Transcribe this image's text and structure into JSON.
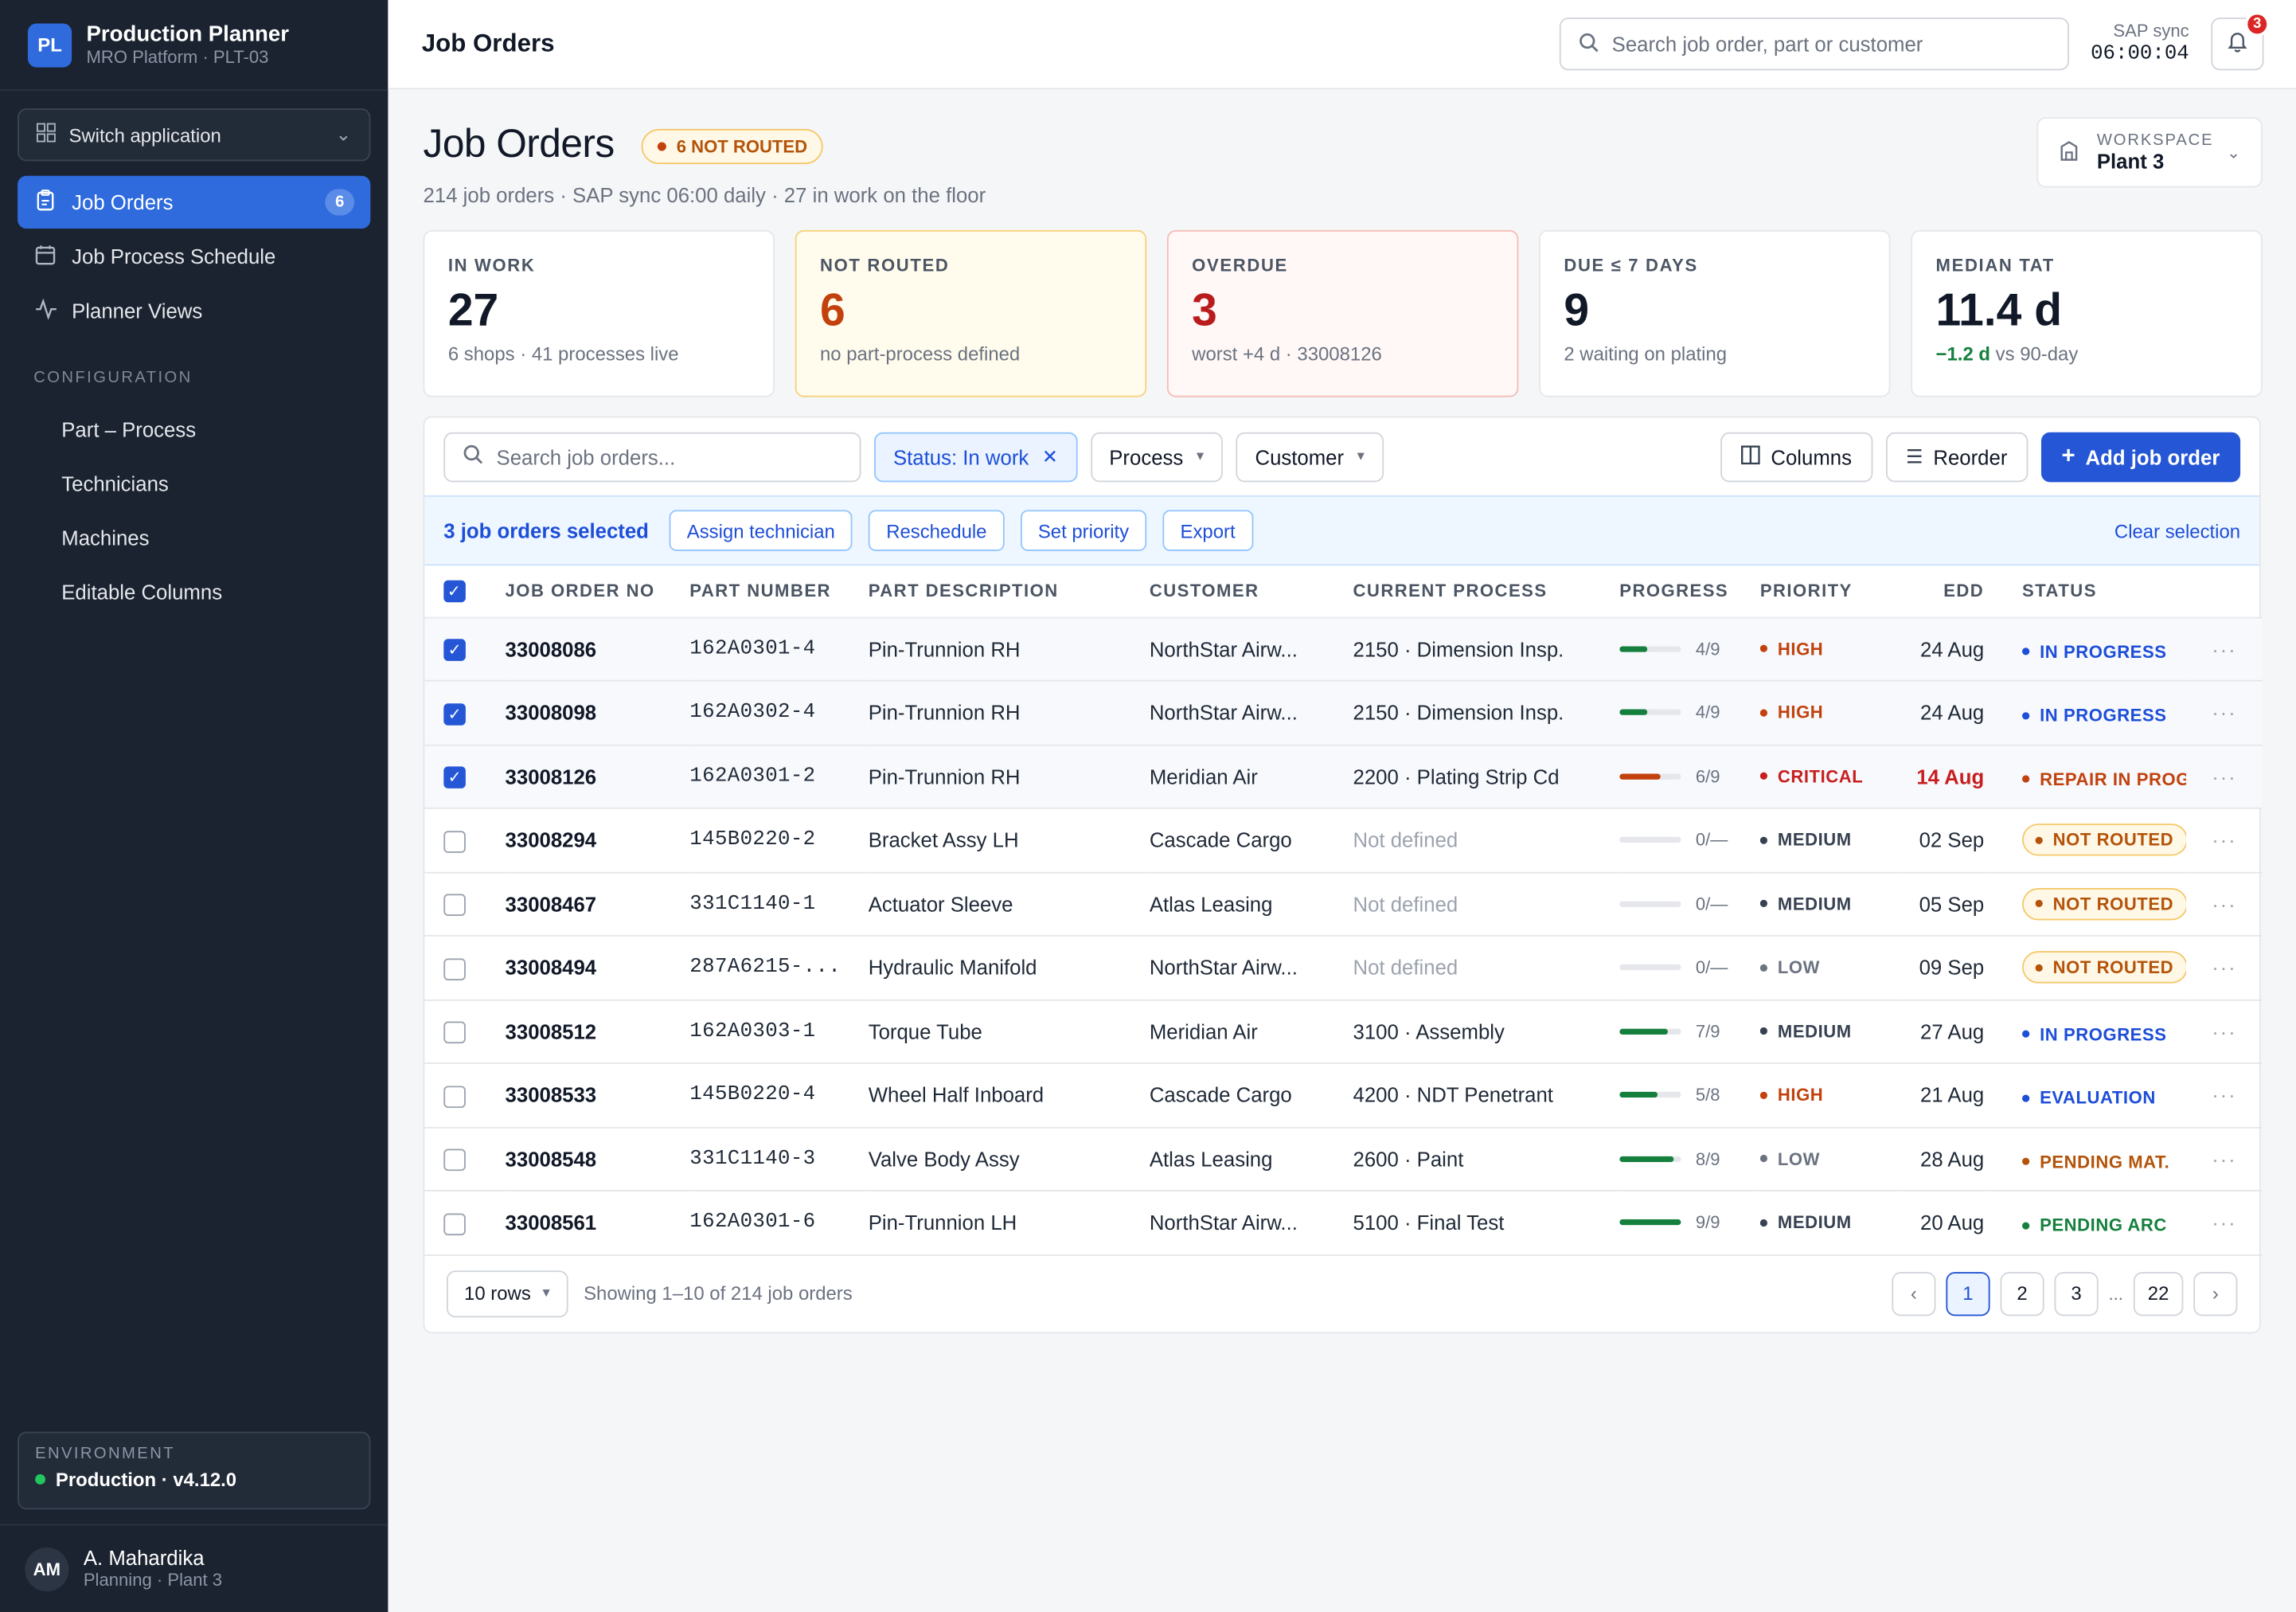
{
  "brand": {
    "logo": "PL",
    "title": "Production Planner",
    "subtitle": "MRO Platform · PLT-03"
  },
  "sidebar": {
    "switch_app": "Switch application",
    "nav": [
      {
        "label": "Job Orders",
        "icon": "clipboard-icon",
        "badge": "6",
        "active": true
      },
      {
        "label": "Job Process Schedule",
        "icon": "calendar-icon"
      },
      {
        "label": "Planner Views",
        "icon": "activity-icon"
      }
    ],
    "config_section": "CONFIGURATION",
    "config_items": [
      "Part – Process",
      "Technicians",
      "Machines",
      "Editable Columns"
    ],
    "environment": {
      "label": "ENVIRONMENT",
      "value": "Production · v4.12.0",
      "status_color": "#22c55e"
    },
    "user": {
      "initials": "AM",
      "name": "A. Mahardika",
      "role": "Planning · Plant 3"
    }
  },
  "topbar": {
    "title": "Job Orders",
    "search_placeholder": "Search job order, part or customer",
    "sap_sync_label": "SAP sync",
    "sap_sync_time": "06:00:04",
    "notifications": "3"
  },
  "header": {
    "title": "Job Orders",
    "badge": "6 NOT ROUTED",
    "subtitle": "214 job orders · SAP sync 06:00 daily · 27 in work on the floor",
    "workspace_label": "WORKSPACE",
    "workspace_value": "Plant 3"
  },
  "kpis": [
    {
      "label": "IN WORK",
      "value": "27",
      "sub": "6 shops · 41 processes live",
      "tone": ""
    },
    {
      "label": "NOT ROUTED",
      "value": "6",
      "sub": "no part-process defined",
      "tone": "warn"
    },
    {
      "label": "OVERDUE",
      "value": "3",
      "sub": "worst +4 d · 33008126",
      "tone": "danger"
    },
    {
      "label": "DUE ≤ 7 DAYS",
      "value": "9",
      "sub": "2 waiting on plating",
      "tone": ""
    },
    {
      "label": "MEDIAN TAT",
      "value": "11.4 d",
      "sub_good": "−1.2 d",
      "sub": " vs 90-day",
      "tone": ""
    }
  ],
  "toolbar": {
    "search_placeholder": "Search job orders...",
    "status_chip": "Status: In work",
    "process_label": "Process",
    "customer_label": "Customer",
    "columns_label": "Columns",
    "reorder_label": "Reorder",
    "add_label": "Add job order"
  },
  "selection": {
    "count_label": "3 job orders selected",
    "actions": [
      "Assign technician",
      "Reschedule",
      "Set priority",
      "Export"
    ],
    "clear_label": "Clear selection"
  },
  "colors": {
    "accent": "#2456d6",
    "progress_green": "#15803d",
    "progress_red": "#c2410c",
    "high": "#c2410c",
    "critical": "#c81e1e",
    "medium": "#374151",
    "low": "#6b7280",
    "in_progress": "#1d4ed8",
    "repair": "#c2410c",
    "not_routed": "#b45309",
    "evaluation": "#1d4ed8",
    "pending_mat": "#b45309",
    "pending_arc": "#15803d"
  },
  "table": {
    "columns": [
      "JOB ORDER NO",
      "PART NUMBER",
      "PART DESCRIPTION",
      "CUSTOMER",
      "CURRENT PROCESS",
      "PROGRESS",
      "PRIORITY",
      "EDD",
      "STATUS"
    ],
    "rows": [
      {
        "selected": true,
        "job": "33008086",
        "part": "162A0301-4",
        "desc": "Pin-Trunnion RH",
        "customer": "NorthStar Airw...",
        "process": "2150 · Dimension Insp.",
        "process_defined": true,
        "progress_label": "4/9",
        "progress": 0.444,
        "progress_tone": "green",
        "priority": "HIGH",
        "priority_tone": "high",
        "edd": "24 Aug",
        "edd_late": false,
        "status": "IN PROGRESS",
        "status_tone": "in_progress",
        "status_pill": false
      },
      {
        "selected": true,
        "job": "33008098",
        "part": "162A0302-4",
        "desc": "Pin-Trunnion RH",
        "customer": "NorthStar Airw...",
        "process": "2150 · Dimension Insp.",
        "process_defined": true,
        "progress_label": "4/9",
        "progress": 0.444,
        "progress_tone": "green",
        "priority": "HIGH",
        "priority_tone": "high",
        "edd": "24 Aug",
        "edd_late": false,
        "status": "IN PROGRESS",
        "status_tone": "in_progress",
        "status_pill": false
      },
      {
        "selected": true,
        "job": "33008126",
        "part": "162A0301-2",
        "desc": "Pin-Trunnion RH",
        "customer": "Meridian Air",
        "process": "2200 · Plating Strip Cd",
        "process_defined": true,
        "progress_label": "6/9",
        "progress": 0.667,
        "progress_tone": "red",
        "priority": "CRITICAL",
        "priority_tone": "critical",
        "edd": "14 Aug",
        "edd_late": true,
        "status": "REPAIR IN PROG.",
        "status_tone": "repair",
        "status_pill": false
      },
      {
        "selected": false,
        "job": "33008294",
        "part": "145B0220-2",
        "desc": "Bracket Assy LH",
        "customer": "Cascade Cargo",
        "process": "Not defined",
        "process_defined": false,
        "progress_label": "0/—",
        "progress": 0,
        "progress_tone": "green",
        "priority": "MEDIUM",
        "priority_tone": "medium",
        "edd": "02 Sep",
        "edd_late": false,
        "status": "NOT ROUTED",
        "status_tone": "not_routed",
        "status_pill": true
      },
      {
        "selected": false,
        "job": "33008467",
        "part": "331C1140-1",
        "desc": "Actuator Sleeve",
        "customer": "Atlas Leasing",
        "process": "Not defined",
        "process_defined": false,
        "progress_label": "0/—",
        "progress": 0,
        "progress_tone": "green",
        "priority": "MEDIUM",
        "priority_tone": "medium",
        "edd": "05 Sep",
        "edd_late": false,
        "status": "NOT ROUTED",
        "status_tone": "not_routed",
        "status_pill": true
      },
      {
        "selected": false,
        "job": "33008494",
        "part": "287A6215-...",
        "desc": "Hydraulic Manifold",
        "customer": "NorthStar Airw...",
        "process": "Not defined",
        "process_defined": false,
        "progress_label": "0/—",
        "progress": 0,
        "progress_tone": "green",
        "priority": "LOW",
        "priority_tone": "low",
        "edd": "09 Sep",
        "edd_late": false,
        "status": "NOT ROUTED",
        "status_tone": "not_routed",
        "status_pill": true
      },
      {
        "selected": false,
        "job": "33008512",
        "part": "162A0303-1",
        "desc": "Torque Tube",
        "customer": "Meridian Air",
        "process": "3100 · Assembly",
        "process_defined": true,
        "progress_label": "7/9",
        "progress": 0.778,
        "progress_tone": "green",
        "priority": "MEDIUM",
        "priority_tone": "medium",
        "edd": "27 Aug",
        "edd_late": false,
        "status": "IN PROGRESS",
        "status_tone": "in_progress",
        "status_pill": false
      },
      {
        "selected": false,
        "job": "33008533",
        "part": "145B0220-4",
        "desc": "Wheel Half Inboard",
        "customer": "Cascade Cargo",
        "process": "4200 · NDT Penetrant",
        "process_defined": true,
        "progress_label": "5/8",
        "progress": 0.625,
        "progress_tone": "green",
        "priority": "HIGH",
        "priority_tone": "high",
        "edd": "21 Aug",
        "edd_late": false,
        "status": "EVALUATION",
        "status_tone": "evaluation",
        "status_pill": false
      },
      {
        "selected": false,
        "job": "33008548",
        "part": "331C1140-3",
        "desc": "Valve Body Assy",
        "customer": "Atlas Leasing",
        "process": "2600 · Paint",
        "process_defined": true,
        "progress_label": "8/9",
        "progress": 0.889,
        "progress_tone": "green",
        "priority": "LOW",
        "priority_tone": "low",
        "edd": "28 Aug",
        "edd_late": false,
        "status": "PENDING MAT.",
        "status_tone": "pending_mat",
        "status_pill": false
      },
      {
        "selected": false,
        "job": "33008561",
        "part": "162A0301-6",
        "desc": "Pin-Trunnion LH",
        "customer": "NorthStar Airw...",
        "process": "5100 · Final Test",
        "process_defined": true,
        "progress_label": "9/9",
        "progress": 1.0,
        "progress_tone": "green",
        "priority": "MEDIUM",
        "priority_tone": "medium",
        "edd": "20 Aug",
        "edd_late": false,
        "status": "PENDING ARC",
        "status_tone": "pending_arc",
        "status_pill": false
      }
    ]
  },
  "footer": {
    "rows_label": "10 rows",
    "showing": "Showing 1–10 of 214 job orders",
    "pages": [
      "1",
      "2",
      "3"
    ],
    "ellipsis": "...",
    "last_page": "22",
    "prev": "‹",
    "next": "›"
  }
}
